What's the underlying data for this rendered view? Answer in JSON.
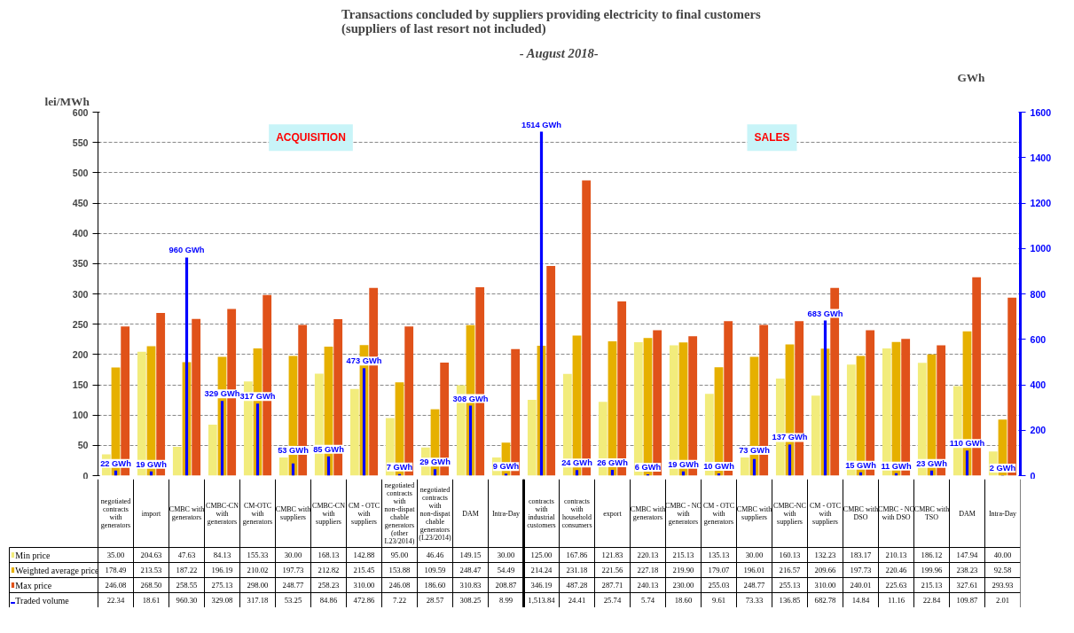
{
  "chart_data": {
    "type": "bar",
    "title": "Transactions  concluded  by suppliers  providing  electricity to final  customers\n(suppliers  of last resort not  included)",
    "subtitle": "- August 2018-",
    "ylabel": "lei/MWh",
    "y2label": "GWh",
    "categories": [
      "negotiated contracts with generators",
      "import",
      "CMBC with generators",
      "CMBC-CN with generators",
      "CM-OTC with generators",
      "CMBC with suppliers",
      "CMBC-CN with suppliers",
      "CM - OTC with suppliers",
      "negotiated contracts with non-dispatchable generators (other L23/2014)",
      "negotiated contracts with non-dispatchable generators (L23/2014)",
      "DAM",
      "Intra-Day",
      "contracts with industrial customers",
      "contracts with household consumers",
      "export",
      "CMBC with generators",
      "CMBC - NC with generators",
      "CM - OTC with generators",
      "CMBC with suppliers",
      "CMBC-NC with suppliers",
      "CM - OTC with suppliers",
      "CMBC with DSO",
      "CMBC - NC with DSO",
      "CMBC with TSO",
      "DAM",
      "Intra-Day"
    ],
    "series": [
      {
        "name": "Min price",
        "color": "#f2ec7c",
        "values": [
          35.0,
          204.63,
          47.63,
          84.13,
          155.33,
          30.0,
          168.13,
          142.88,
          95.0,
          46.46,
          149.15,
          30.0,
          125.0,
          167.86,
          121.83,
          220.13,
          215.13,
          135.13,
          30.0,
          160.13,
          132.23,
          183.17,
          210.13,
          186.12,
          147.94,
          40.0
        ],
        "value_labels": [
          "35.00",
          "204.63",
          "47.63",
          "84.13",
          "155.33",
          "30.00",
          "168.13",
          "142.88",
          "95.00",
          "46.46",
          "149.15",
          "30.00",
          "125.00",
          "167.86",
          "121.83",
          "220.13",
          "215.13",
          "135.13",
          "30.00",
          "160.13",
          "132.23",
          "183.17",
          "210.13",
          "186.12",
          "147.94",
          "40.00"
        ]
      },
      {
        "name": "Weighted average price",
        "color": "#e6b000",
        "values": [
          178.49,
          213.53,
          187.22,
          196.19,
          210.02,
          197.73,
          212.82,
          215.45,
          153.88,
          109.59,
          248.47,
          54.49,
          214.24,
          231.18,
          221.56,
          227.18,
          219.9,
          179.07,
          196.01,
          216.57,
          209.66,
          197.73,
          220.46,
          199.96,
          238.23,
          92.58
        ],
        "value_labels": [
          "178.49",
          "213.53",
          "187.22",
          "196.19",
          "210.02",
          "197.73",
          "212.82",
          "215.45",
          "153.88",
          "109.59",
          "248.47",
          "54.49",
          "214.24",
          "231.18",
          "221.56",
          "227.18",
          "219.90",
          "179.07",
          "196.01",
          "216.57",
          "209.66",
          "197.73",
          "220.46",
          "199.96",
          "238.23",
          "92.58"
        ]
      },
      {
        "name": "Max price",
        "color": "#e0521a",
        "values": [
          246.08,
          268.5,
          258.55,
          275.13,
          298.0,
          248.77,
          258.23,
          310.0,
          246.08,
          186.6,
          310.83,
          208.87,
          346.19,
          487.28,
          287.71,
          240.13,
          230.0,
          255.03,
          248.77,
          255.13,
          310.0,
          240.01,
          225.63,
          215.13,
          327.61,
          293.93
        ],
        "value_labels": [
          "246.08",
          "268.50",
          "258.55",
          "275.13",
          "298.00",
          "248.77",
          "258.23",
          "310.00",
          "246.08",
          "186.60",
          "310.83",
          "208.87",
          "346.19",
          "487.28",
          "287.71",
          "240.13",
          "230.00",
          "255.03",
          "248.77",
          "255.13",
          "310.00",
          "240.01",
          "225.63",
          "215.13",
          "327.61",
          "293.93"
        ]
      },
      {
        "name": "Traded volume",
        "color": "#0000ff",
        "axis": "y2",
        "values": [
          22.34,
          18.61,
          960.3,
          329.08,
          317.18,
          53.25,
          84.86,
          472.86,
          7.22,
          28.57,
          308.25,
          8.99,
          1513.84,
          24.41,
          25.74,
          5.74,
          18.6,
          9.61,
          73.33,
          136.85,
          682.78,
          14.84,
          11.16,
          22.84,
          109.87,
          2.01
        ],
        "value_labels": [
          "22.34",
          "18.61",
          "960.30",
          "329.08",
          "317.18",
          "53.25",
          "84.86",
          "472.86",
          "7.22",
          "28.57",
          "308.25",
          "8.99",
          "1,513.84",
          "24.41",
          "25.74",
          "5.74",
          "18.60",
          "9.61",
          "73.33",
          "136.85",
          "682.78",
          "14.84",
          "11.16",
          "22.84",
          "109.87",
          "2.01"
        ]
      }
    ],
    "ylim": [
      0,
      600
    ],
    "yticks": [
      0,
      50,
      100,
      150,
      200,
      250,
      300,
      350,
      400,
      450,
      500,
      550,
      600
    ],
    "y2lim": [
      0,
      1600
    ],
    "y2ticks": [
      0,
      200,
      400,
      600,
      800,
      1000,
      1200,
      1400,
      1600
    ],
    "annotations": [
      "ACQUISITION",
      "SALES",
      "22 GWh",
      "19 GWh",
      "960 GWh",
      "329 GWh",
      "317 GWh",
      "53 GWh",
      "85 GWh",
      "473 GWh",
      "7 GWh",
      "29 GWh",
      "308 GWh",
      "9 GWh",
      "1514 GWh",
      "24 GWh",
      "26 GWh",
      "6 GWh",
      "19 GWh",
      "10 GWh",
      "73 GWh",
      "137 GWh",
      "683 GWh",
      "15 GWh",
      "11 GWh",
      "23 GWh",
      "110 GWh",
      "2 GWh"
    ],
    "grid": "y",
    "legend": "bottom"
  }
}
